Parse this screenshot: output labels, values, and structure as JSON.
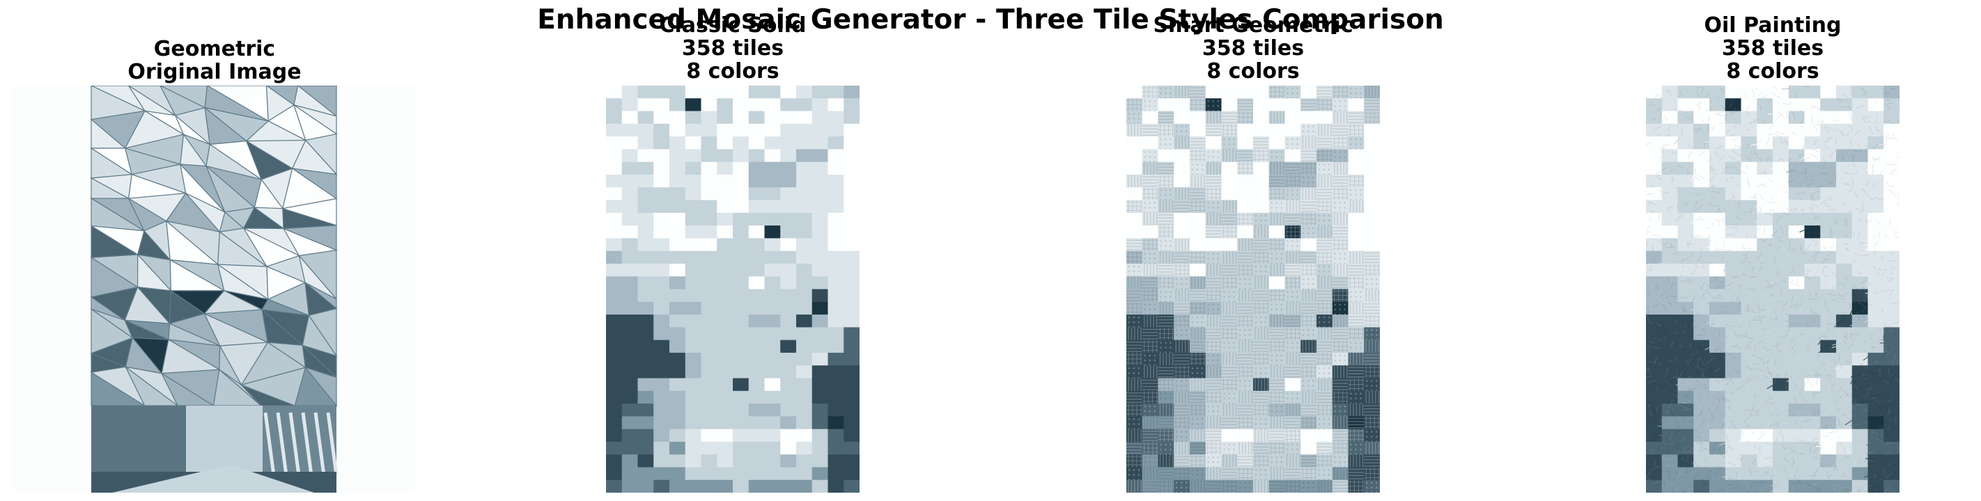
{
  "figure": {
    "title": "Enhanced Mosaic Generator - Three Tile Styles Comparison"
  },
  "panels": [
    {
      "id": "original",
      "lines": [
        "Geometric",
        "Original Image"
      ]
    },
    {
      "id": "classic",
      "lines": [
        "Classic Solid",
        "358 tiles",
        "8 colors"
      ]
    },
    {
      "id": "smart",
      "lines": [
        "Smart Geometric",
        "358 tiles",
        "8 colors"
      ]
    },
    {
      "id": "oil",
      "lines": [
        "Oil Painting",
        "358 tiles",
        "8 colors"
      ]
    }
  ],
  "palette": [
    "#fdfefe",
    "#dce5ea",
    "#c4d2da",
    "#a6b9c4",
    "#7f98a6",
    "#4d6674",
    "#334b58",
    "#1b3441"
  ],
  "mosaic": {
    "grid": [
      "0122200002201223",
      "2100270200022102",
      "2020021202000112",
      "1112011000011110",
      "0012102010111120",
      "0100112212013300",
      "0220120103331100",
      "1110110003331110",
      "0122210002211110",
      "1122222001111110",
      "0110022122222100",
      "0010011020722100",
      "1211000222101100",
      "3222222222221111",
      "1111022222112111",
      "3322322220212211",
      "3322222222222611",
      "3332332222222711",
      "6663222223326311",
      "6663322222222225",
      "6666322222262225",
      "6666632222222155",
      "6666632222221666",
      "6633222262022666",
      "6643322222222666",
      "6553322223322566",
      "6443322222232576",
      "6553210011100256",
      "5552411122201255",
      "6462212122232266",
      "6444422222222466",
      "5445444424444265"
    ]
  }
}
